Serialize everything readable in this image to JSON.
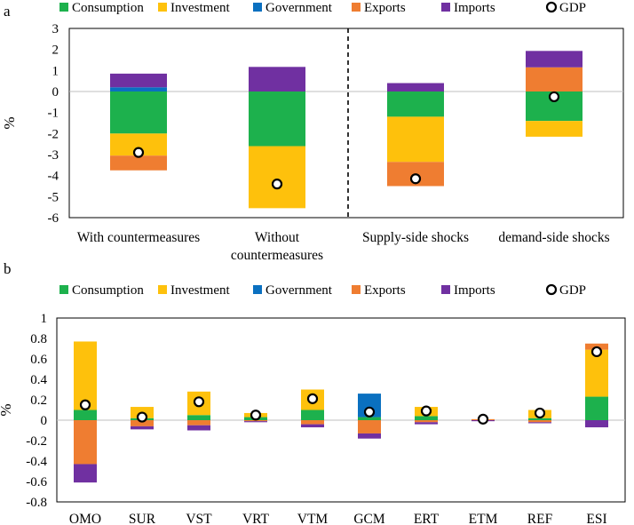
{
  "colors": {
    "Consumption": "#1db14d",
    "Investment": "#fec10c",
    "Government": "#0a70c0",
    "Exports": "#ef7d31",
    "Imports": "#7030a1",
    "GDP": "#ffffff"
  },
  "chart_data": [
    {
      "id": "a",
      "type": "bar",
      "stacked": true,
      "panel_label": "a",
      "ylabel": "%",
      "ylim": [
        -6,
        3
      ],
      "yticks": [
        -6,
        -5,
        -4,
        -3,
        -2,
        -1,
        0,
        1,
        2,
        3
      ],
      "divider_after_category": 1,
      "legend": {
        "placement": "top",
        "items": [
          {
            "name": "Consumption",
            "marker": "square"
          },
          {
            "name": "Investment",
            "marker": "square"
          },
          {
            "name": "Government",
            "marker": "square"
          },
          {
            "name": "Exports",
            "marker": "square"
          },
          {
            "name": "Imports",
            "marker": "square"
          },
          {
            "name": "GDP",
            "marker": "circle"
          }
        ]
      },
      "categories": [
        [
          "With countermeasures"
        ],
        [
          "Without",
          "countermeasures"
        ],
        [
          "Supply-side shocks"
        ],
        [
          "demand-side shocks"
        ]
      ],
      "series": [
        {
          "name": "Consumption",
          "values": [
            -2.0,
            -2.6,
            -1.2,
            -1.4
          ]
        },
        {
          "name": "Investment",
          "values": [
            -1.05,
            -2.95,
            -2.15,
            -0.75
          ]
        },
        {
          "name": "Government",
          "values": [
            0.2,
            0.0,
            0.0,
            0.0
          ]
        },
        {
          "name": "Exports",
          "values": [
            -0.7,
            0.0,
            -1.15,
            1.15
          ]
        },
        {
          "name": "Imports",
          "values": [
            0.65,
            1.17,
            0.4,
            0.78
          ]
        }
      ],
      "gdp": [
        -2.9,
        -4.4,
        -4.15,
        -0.25
      ]
    },
    {
      "id": "b",
      "type": "bar",
      "stacked": true,
      "panel_label": "b",
      "ylabel": "%",
      "ylim": [
        -0.8,
        1.0
      ],
      "yticks": [
        -0.8,
        -0.6,
        -0.4,
        -0.2,
        0,
        0.2,
        0.4,
        0.6,
        0.8,
        1
      ],
      "legend": {
        "placement": "top",
        "items": [
          {
            "name": "Consumption",
            "marker": "square"
          },
          {
            "name": "Investment",
            "marker": "square"
          },
          {
            "name": "Government",
            "marker": "square"
          },
          {
            "name": "Exports",
            "marker": "square"
          },
          {
            "name": "Imports",
            "marker": "square"
          },
          {
            "name": "GDP",
            "marker": "circle"
          }
        ]
      },
      "categories": [
        "OMO",
        "SUR",
        "VST",
        "VRT",
        "VTM",
        "GCM",
        "ERT",
        "ETM",
        "REF",
        "ESI"
      ],
      "series": [
        {
          "name": "Consumption",
          "values": [
            0.1,
            0.02,
            0.05,
            0.03,
            0.1,
            0.03,
            0.04,
            0.0,
            0.02,
            0.23
          ]
        },
        {
          "name": "Investment",
          "values": [
            0.67,
            0.11,
            0.23,
            0.04,
            0.2,
            0.0,
            0.09,
            0.0,
            0.08,
            0.46
          ]
        },
        {
          "name": "Government",
          "values": [
            0.0,
            0.0,
            0.0,
            0.0,
            0.0,
            0.23,
            0.0,
            0.0,
            0.0,
            0.0
          ]
        },
        {
          "name": "Exports",
          "values": [
            -0.43,
            -0.06,
            -0.05,
            -0.01,
            -0.04,
            -0.13,
            -0.02,
            0.01,
            -0.02,
            0.06
          ]
        },
        {
          "name": "Imports",
          "values": [
            -0.18,
            -0.03,
            -0.05,
            -0.01,
            -0.03,
            -0.05,
            -0.02,
            -0.01,
            -0.01,
            -0.07
          ]
        }
      ],
      "gdp": [
        0.15,
        0.03,
        0.18,
        0.05,
        0.21,
        0.08,
        0.09,
        0.01,
        0.07,
        0.67
      ]
    }
  ]
}
